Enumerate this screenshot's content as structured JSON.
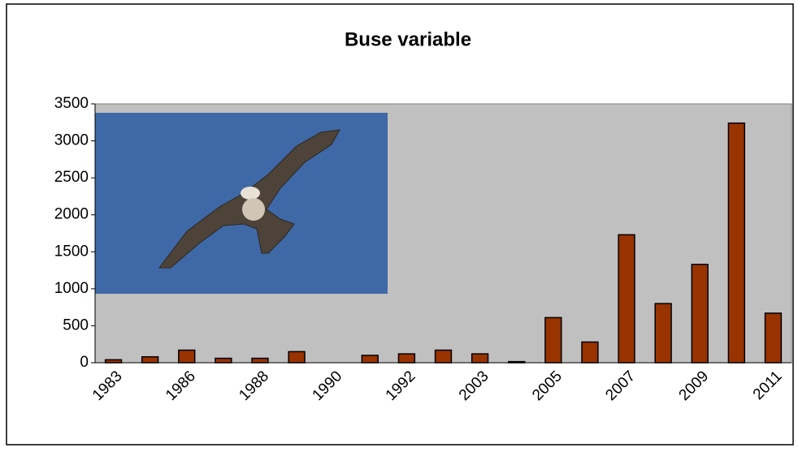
{
  "chart_data": {
    "type": "bar",
    "title": "Buse variable",
    "categories": [
      "1983",
      null,
      "1986",
      null,
      "1988",
      null,
      "1990",
      null,
      "1992",
      null,
      "2003",
      null,
      "2005",
      null,
      "2007",
      null,
      "2009",
      null,
      "2011"
    ],
    "values": [
      40,
      80,
      170,
      60,
      60,
      150,
      0,
      100,
      120,
      170,
      120,
      15,
      610,
      280,
      1730,
      800,
      1330,
      3240,
      670
    ],
    "color": "#993300",
    "ylim": [
      0,
      3500
    ],
    "yticks": [
      0,
      500,
      1000,
      1500,
      2000,
      2500,
      3000,
      3500
    ],
    "grid": false
  }
}
